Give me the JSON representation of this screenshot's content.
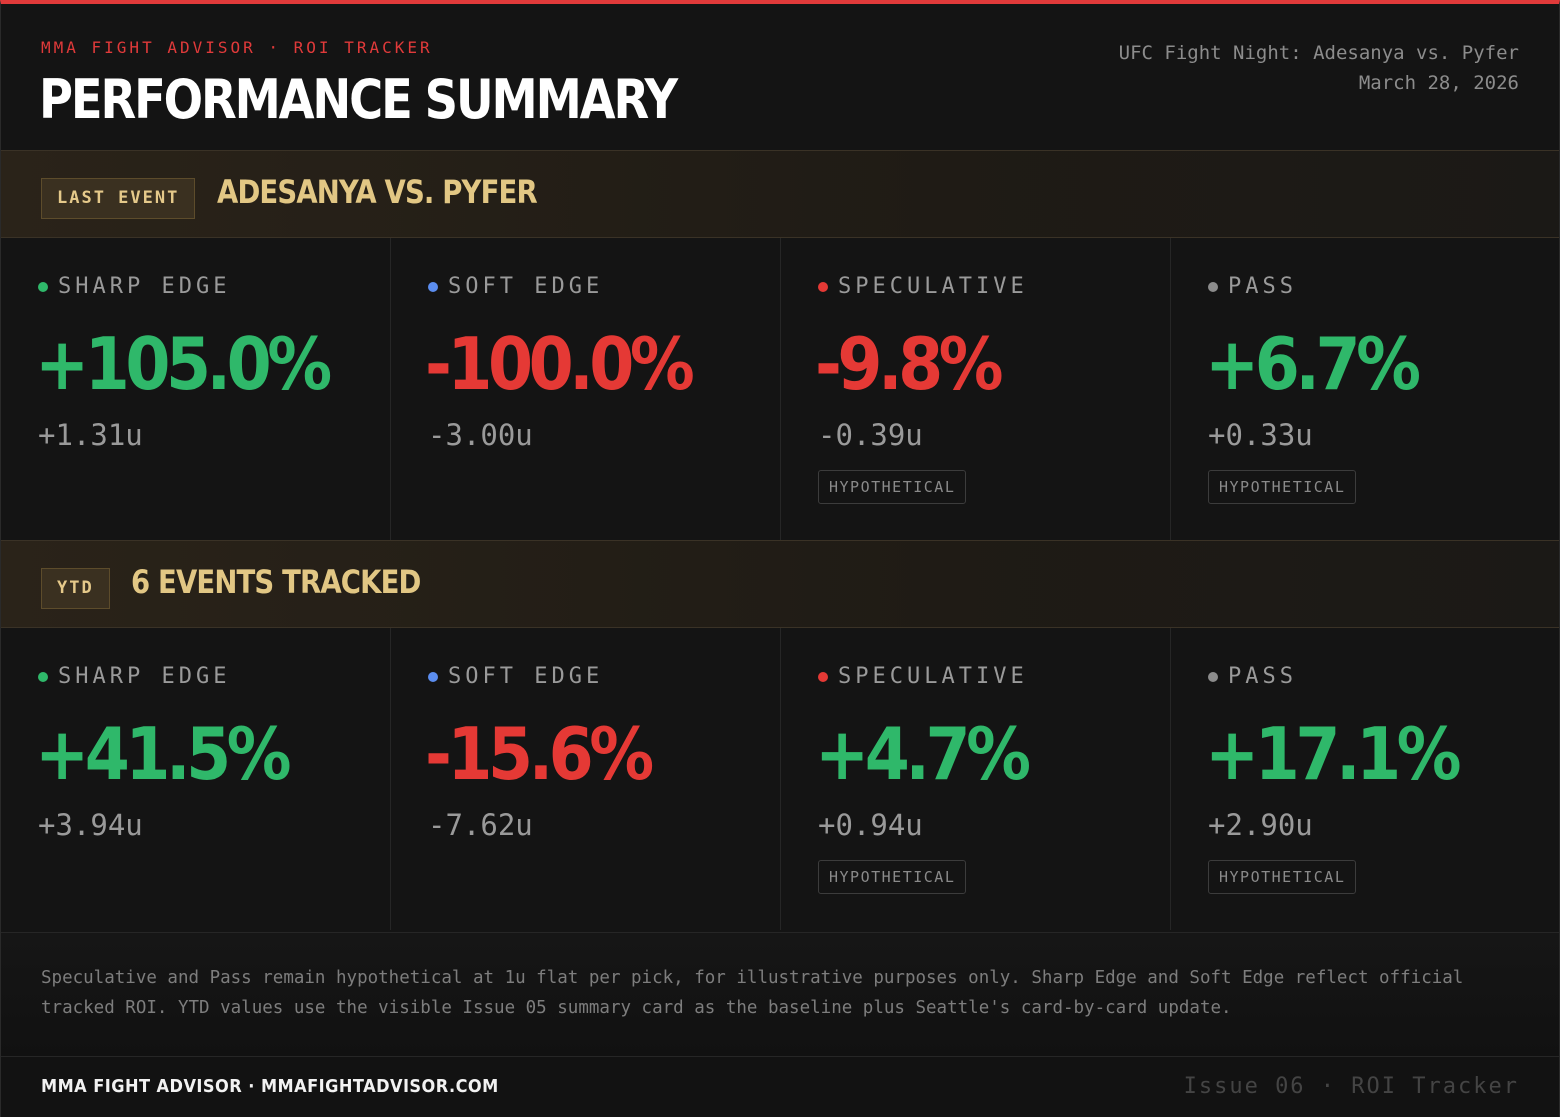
{
  "header": {
    "eyebrow": "MMA FIGHT ADVISOR · ROI TRACKER",
    "title": "PERFORMANCE SUMMARY",
    "event_name": "UFC Fight Night: Adesanya vs. Pyfer",
    "event_date": "March 28, 2026"
  },
  "colors": {
    "accent_red": "#e03a3a",
    "positive": "#2fb86a",
    "negative": "#e53935",
    "gold": "#e2c784",
    "sharp_dot": "#2fb86a",
    "soft_dot": "#5b8def",
    "speculative_dot": "#e53935",
    "pass_dot": "#8c8c8c"
  },
  "last_event": {
    "badge": "LAST EVENT",
    "title": "ADESANYA VS. PYFER",
    "metrics": [
      {
        "label": "SHARP EDGE",
        "pct": "+105.0%",
        "units": "+1.31u",
        "tag": ""
      },
      {
        "label": "SOFT EDGE",
        "pct": "-100.0%",
        "units": "-3.00u",
        "tag": ""
      },
      {
        "label": "SPECULATIVE",
        "pct": "-9.8%",
        "units": "-0.39u",
        "tag": "HYPOTHETICAL"
      },
      {
        "label": "PASS",
        "pct": "+6.7%",
        "units": "+0.33u",
        "tag": "HYPOTHETICAL"
      }
    ]
  },
  "ytd": {
    "badge": "YTD",
    "title": "6 EVENTS TRACKED",
    "metrics": [
      {
        "label": "SHARP EDGE",
        "pct": "+41.5%",
        "units": "+3.94u",
        "tag": ""
      },
      {
        "label": "SOFT EDGE",
        "pct": "-15.6%",
        "units": "-7.62u",
        "tag": ""
      },
      {
        "label": "SPECULATIVE",
        "pct": "+4.7%",
        "units": "+0.94u",
        "tag": "HYPOTHETICAL"
      },
      {
        "label": "PASS",
        "pct": "+17.1%",
        "units": "+2.90u",
        "tag": "HYPOTHETICAL"
      }
    ]
  },
  "note": "Speculative and Pass remain hypothetical at 1u flat per pick, for illustrative purposes only. Sharp Edge and Soft Edge reflect official tracked ROI. YTD values use the visible Issue 05 summary card as the baseline plus Seattle's card-by-card update.",
  "footer": {
    "brand": "MMA FIGHT ADVISOR · MMAFIGHTADVISOR.COM",
    "issue": "Issue 06 · ROI Tracker"
  }
}
